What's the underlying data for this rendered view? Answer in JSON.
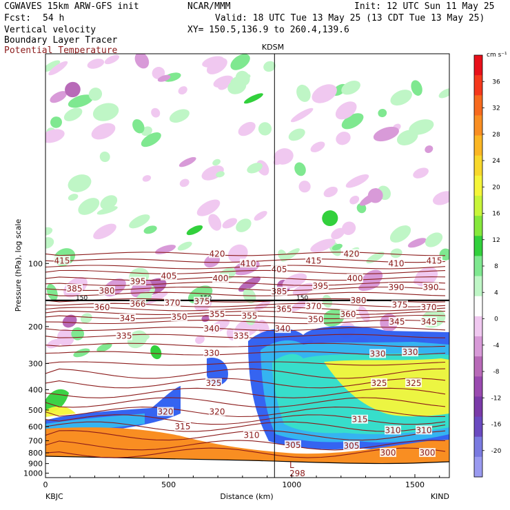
{
  "header": {
    "model": "CGWAVES 15km ARW-GFS init",
    "org": "NCAR/MMM",
    "init": "Init: 12 UTC Sun 11 May 25",
    "fcst_label": "Fcst:",
    "fcst_value": "54 h",
    "valid": "Valid: 18 UTC Tue 13 May 25 (13 CDT Tue 13 May 25)",
    "field1": "Vertical velocity",
    "field2": "Boundary Layer Tracer",
    "field3": "Potential Temperature",
    "xy": "XY= 150.5,136.9 to 260.4,139.6"
  },
  "chart_data": {
    "type": "heatmap",
    "title": "KDSM",
    "xlabel": "Distance (km)",
    "ylabel": "Pressure (hPa), log scale",
    "xlim": [
      0,
      1640
    ],
    "ylim": [
      1050,
      10
    ],
    "x_ticks": [
      0,
      500,
      1000,
      1500
    ],
    "y_ticks": [
      100,
      200,
      300,
      400,
      500,
      600,
      700,
      800,
      900,
      1000
    ],
    "left_station": "KBJC",
    "right_station": "KIND",
    "marker_x_km": 930,
    "tropopause_marker": "150",
    "surface_label": "L",
    "surface_theta": "298",
    "colorbar": {
      "unit": "cm s⁻¹",
      "levels": [
        36,
        32,
        28,
        24,
        20,
        16,
        12,
        8,
        4,
        0,
        -4,
        -8,
        -12,
        -16,
        -20
      ],
      "colors": [
        "#e8101a",
        "#f5381c",
        "#f76a1e",
        "#f98e22",
        "#fbb624",
        "#f8d82c",
        "#f5f53a",
        "#c8f53a",
        "#86e83c",
        "#32d03c",
        "#7fe890",
        "#bff6c6",
        "#ffffff",
        "#f0c8f0",
        "#d89ad8",
        "#b86ab8",
        "#9a4ab0",
        "#7a3aa8",
        "#6a4ac0",
        "#7a7ae0",
        "#9a9af0"
      ]
    },
    "theta_contours": [
      {
        "label": "415",
        "x": 90,
        "p": 97
      },
      {
        "label": "420",
        "x": 315,
        "p": 90
      },
      {
        "label": "410",
        "x": 360,
        "p": 100
      },
      {
        "label": "405",
        "x": 245,
        "p": 115
      },
      {
        "label": "405",
        "x": 405,
        "p": 107
      },
      {
        "label": "415",
        "x": 455,
        "p": 97
      },
      {
        "label": "420",
        "x": 510,
        "p": 90
      },
      {
        "label": "410",
        "x": 575,
        "p": 100
      },
      {
        "label": "415",
        "x": 630,
        "p": 97
      },
      {
        "label": "385",
        "x": 108,
        "p": 132
      },
      {
        "label": "380",
        "x": 155,
        "p": 135
      },
      {
        "label": "395",
        "x": 200,
        "p": 122
      },
      {
        "label": "400",
        "x": 320,
        "p": 118
      },
      {
        "label": "385",
        "x": 405,
        "p": 136
      },
      {
        "label": "395",
        "x": 465,
        "p": 128
      },
      {
        "label": "400",
        "x": 515,
        "p": 118
      },
      {
        "label": "390",
        "x": 575,
        "p": 130
      },
      {
        "label": "390",
        "x": 625,
        "p": 130
      },
      {
        "label": "360",
        "x": 148,
        "p": 162
      },
      {
        "label": "366",
        "x": 200,
        "p": 156
      },
      {
        "label": "370",
        "x": 250,
        "p": 154
      },
      {
        "label": "375",
        "x": 293,
        "p": 152
      },
      {
        "label": "370",
        "x": 455,
        "p": 160
      },
      {
        "label": "380",
        "x": 520,
        "p": 150
      },
      {
        "label": "375",
        "x": 580,
        "p": 158
      },
      {
        "label": "370",
        "x": 622,
        "p": 162
      },
      {
        "label": "345",
        "x": 185,
        "p": 183
      },
      {
        "label": "350",
        "x": 260,
        "p": 180
      },
      {
        "label": "355",
        "x": 315,
        "p": 175
      },
      {
        "label": "355",
        "x": 362,
        "p": 178
      },
      {
        "label": "365",
        "x": 412,
        "p": 165
      },
      {
        "label": "350",
        "x": 458,
        "p": 185
      },
      {
        "label": "360",
        "x": 505,
        "p": 175
      },
      {
        "label": "345",
        "x": 576,
        "p": 190
      },
      {
        "label": "345",
        "x": 622,
        "p": 190
      },
      {
        "label": "335",
        "x": 180,
        "p": 222
      },
      {
        "label": "340",
        "x": 307,
        "p": 205
      },
      {
        "label": "335",
        "x": 350,
        "p": 222
      },
      {
        "label": "340",
        "x": 410,
        "p": 205
      },
      {
        "label": "330",
        "x": 307,
        "p": 268
      },
      {
        "label": "330",
        "x": 548,
        "p": 270
      },
      {
        "label": "330",
        "x": 595,
        "p": 265
      },
      {
        "label": "325",
        "x": 310,
        "p": 372
      },
      {
        "label": "325",
        "x": 550,
        "p": 372
      },
      {
        "label": "325",
        "x": 600,
        "p": 372
      },
      {
        "label": "320",
        "x": 240,
        "p": 510
      },
      {
        "label": "320",
        "x": 315,
        "p": 510
      },
      {
        "label": "315",
        "x": 265,
        "p": 600
      },
      {
        "label": "315",
        "x": 522,
        "p": 555
      },
      {
        "label": "310",
        "x": 365,
        "p": 660
      },
      {
        "label": "310",
        "x": 570,
        "p": 625
      },
      {
        "label": "310",
        "x": 615,
        "p": 625
      },
      {
        "label": "305",
        "x": 425,
        "p": 735
      },
      {
        "label": "305",
        "x": 510,
        "p": 740
      },
      {
        "label": "300",
        "x": 563,
        "p": 800
      },
      {
        "label": "300",
        "x": 620,
        "p": 800
      }
    ]
  }
}
